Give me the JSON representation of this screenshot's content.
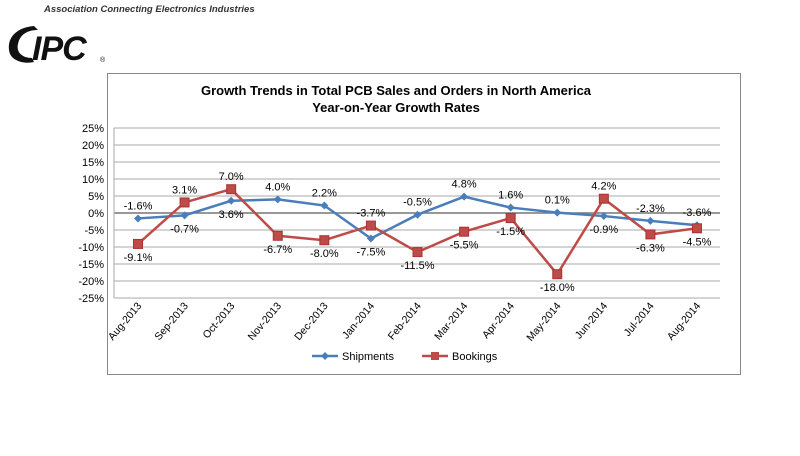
{
  "header": {
    "tagline": "Association Connecting Electronics Industries",
    "logo_text": "IPC"
  },
  "chart_data": {
    "type": "line",
    "title": "Growth Trends in Total PCB Sales and Orders in North America",
    "subtitle": "Year-on-Year Growth Rates",
    "categories": [
      "Aug-2013",
      "Sep-2013",
      "Oct-2013",
      "Nov-2013",
      "Dec-2013",
      "Jan-2014",
      "Feb-2014",
      "Mar-2014",
      "Apr-2014",
      "May-2014",
      "Jun-2014",
      "Jul-2014",
      "Aug-2014"
    ],
    "ylim": [
      -25,
      25
    ],
    "yticks": [
      "25%",
      "20%",
      "15%",
      "10%",
      "5%",
      "0%",
      "-5%",
      "-10%",
      "-15%",
      "-20%",
      "-25%"
    ],
    "grid": true,
    "legend": "bottom",
    "series": [
      {
        "name": "Shipments",
        "color": "#4a7ebb",
        "marker": "diamond",
        "values": [
          -1.6,
          -0.7,
          3.6,
          4.0,
          2.2,
          -7.5,
          -0.5,
          4.8,
          1.6,
          0.1,
          -0.9,
          -2.3,
          -3.6
        ],
        "labels": [
          "-1.6%",
          "-0.7%",
          "3.6%",
          "4.0%",
          "2.2%",
          "-7.5%",
          "-0.5%",
          "4.8%",
          "1.6%",
          "0.1%",
          "-0.9%",
          "-2.3%",
          "-3.6%"
        ]
      },
      {
        "name": "Bookings",
        "color": "#be4b48",
        "marker": "square",
        "values": [
          -9.1,
          3.1,
          7.0,
          -6.7,
          -8.0,
          -3.7,
          -11.5,
          -5.5,
          -1.5,
          -18.0,
          4.2,
          -6.3,
          -4.5
        ],
        "labels": [
          "-9.1%",
          "3.1%",
          "7.0%",
          "-6.7%",
          "-8.0%",
          "-3.7%",
          "-11.5%",
          "-5.5%",
          "-1.5%",
          "-18.0%",
          "4.2%",
          "-6.3%",
          "-4.5%"
        ]
      }
    ]
  }
}
